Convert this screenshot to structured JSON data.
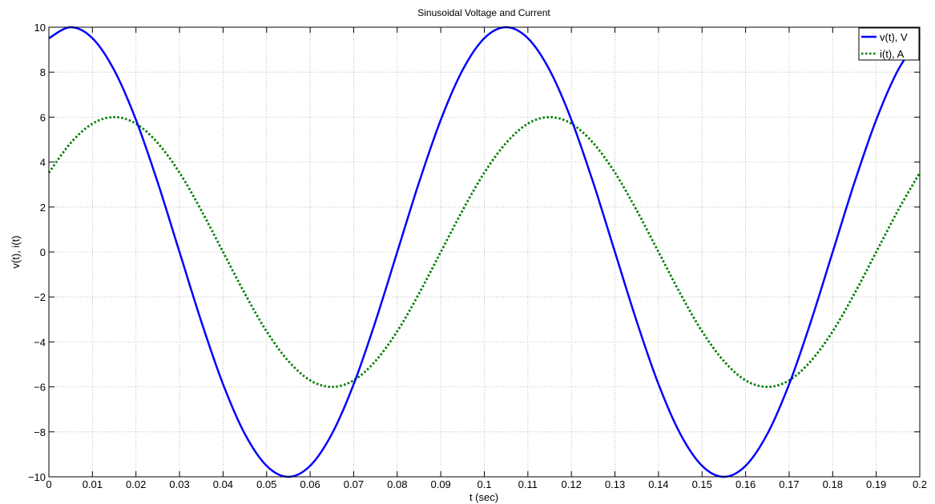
{
  "chart_data": {
    "type": "line",
    "title": "Sinusoidal Voltage and Current",
    "xlabel": "t (sec)",
    "ylabel": "v(t), i(t)",
    "xlim": [
      0,
      0.2
    ],
    "ylim": [
      -10,
      10
    ],
    "grid": true,
    "legend_position": "top-right",
    "x_ticks": [
      0,
      0.01,
      0.02,
      0.03,
      0.04,
      0.05,
      0.06,
      0.07,
      0.08,
      0.09,
      0.1,
      0.11,
      0.12,
      0.13,
      0.14,
      0.15,
      0.16,
      0.17,
      0.18,
      0.19,
      0.2
    ],
    "x_tick_labels": [
      "0",
      "0.01",
      "0.02",
      "0.03",
      "0.04",
      "0.05",
      "0.06",
      "0.07",
      "0.08",
      "0.09",
      "0.1",
      "0.11",
      "0.12",
      "0.13",
      "0.14",
      "0.15",
      "0.16",
      "0.17",
      "0.18",
      "0.19",
      "0.2"
    ],
    "y_ticks": [
      -10,
      -8,
      -6,
      -4,
      -2,
      0,
      2,
      4,
      6,
      8,
      10
    ],
    "y_tick_labels": [
      "−10",
      "−8",
      "−6",
      "−4",
      "−2",
      "0",
      "2",
      "4",
      "6",
      "8",
      "10"
    ],
    "x": [
      0,
      0.005,
      0.01,
      0.015,
      0.02,
      0.025,
      0.03,
      0.035,
      0.04,
      0.045,
      0.05,
      0.055,
      0.06,
      0.065,
      0.07,
      0.075,
      0.08,
      0.085,
      0.09,
      0.095,
      0.1,
      0.105,
      0.11,
      0.115,
      0.12,
      0.125,
      0.13,
      0.135,
      0.14,
      0.145,
      0.15,
      0.155,
      0.16,
      0.165,
      0.17,
      0.175,
      0.18,
      0.185,
      0.19,
      0.195,
      0.2
    ],
    "series": [
      {
        "name": "v(t), V",
        "color": "#0000ff",
        "style": "solid",
        "values": [
          9.51,
          10.0,
          9.51,
          8.09,
          5.88,
          3.09,
          0.0,
          -3.09,
          -5.88,
          -8.09,
          -9.51,
          -10.0,
          -9.51,
          -8.09,
          -5.88,
          -3.09,
          0.0,
          3.09,
          5.88,
          8.09,
          9.51,
          10.0,
          9.51,
          8.09,
          5.88,
          3.09,
          0.0,
          -3.09,
          -5.88,
          -8.09,
          -9.51,
          -10.0,
          -9.51,
          -8.09,
          -5.88,
          -3.09,
          0.0,
          3.09,
          5.88,
          8.09,
          9.51
        ]
      },
      {
        "name": "i(t), A",
        "color": "#007f00",
        "style": "dotted",
        "values": [
          3.53,
          4.85,
          5.71,
          6.0,
          5.71,
          4.85,
          3.53,
          1.85,
          0.0,
          -1.85,
          -3.53,
          -4.85,
          -5.71,
          -6.0,
          -5.71,
          -4.85,
          -3.53,
          -1.85,
          0.0,
          1.85,
          3.53,
          4.85,
          5.71,
          6.0,
          5.71,
          4.85,
          3.53,
          1.85,
          0.0,
          -1.85,
          -3.53,
          -4.85,
          -5.71,
          -6.0,
          -5.71,
          -4.85,
          -3.53,
          -1.85,
          0.0,
          1.85,
          3.53
        ]
      }
    ]
  }
}
